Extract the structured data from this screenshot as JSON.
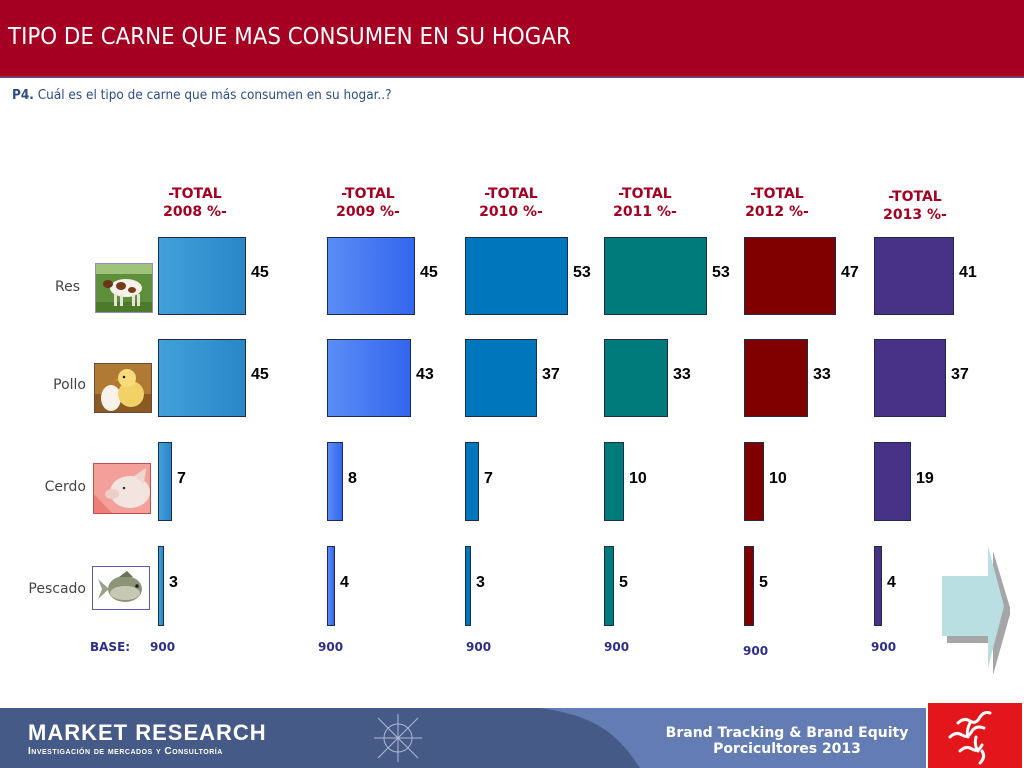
{
  "header": {
    "title": "TIPO DE CARNE QUE MAS CONSUMEN EN SU HOGAR"
  },
  "question": {
    "number": "P4.",
    "text": "Cuál es el tipo de carne que más consumen en su hogar..?"
  },
  "chart_data": {
    "type": "bar",
    "orientation": "horizontal",
    "title": "TIPO DE CARNE QUE MAS CONSUMEN EN SU HOGAR",
    "categories": [
      "Res",
      "Pollo",
      "Cerdo",
      "Pescado"
    ],
    "category_icons": [
      "cow-photo",
      "chick-photo",
      "pig-photo",
      "fish-photo"
    ],
    "series": [
      {
        "name": "-TOTAL 2008 %-",
        "line1": "-TOTAL",
        "line2": "2008 %-",
        "values": [
          45,
          45,
          7,
          3
        ],
        "base": "900",
        "color": "#2a87c8",
        "color_light": "#42a0d8"
      },
      {
        "name": "-TOTAL 2009 %-",
        "line1": "-TOTAL",
        "line2": "2009 %-",
        "values": [
          45,
          43,
          8,
          4
        ],
        "base": "900",
        "color": "#3366ee",
        "color_light": "#5b8cf6"
      },
      {
        "name": "-TOTAL 2010 %-",
        "line1": "-TOTAL",
        "line2": "2010 %-",
        "values": [
          53,
          37,
          7,
          3
        ],
        "base": "900",
        "color": "#0077bd",
        "color_light": "#0077bd"
      },
      {
        "name": "-TOTAL 2011 %-",
        "line1": "-TOTAL",
        "line2": "2011 %-",
        "values": [
          53,
          33,
          10,
          5
        ],
        "base": "900",
        "color": "#007b7b",
        "color_light": "#007b7b"
      },
      {
        "name": "-TOTAL 2012 %-",
        "line1": "-TOTAL",
        "line2": "2012 %-",
        "values": [
          47,
          33,
          10,
          5
        ],
        "base": "900",
        "color": "#800000",
        "color_light": "#800000"
      },
      {
        "name": "-TOTAL 2013 %-",
        "line1": "-TOTAL",
        "line2": "2013 %-",
        "values": [
          41,
          37,
          19,
          4
        ],
        "base": "900",
        "color": "#483287",
        "color_light": "#483287"
      }
    ],
    "base_label": "BASE:",
    "unit": "%",
    "xlabel": "",
    "ylabel": ""
  },
  "footer": {
    "company": "MARKET RESEARCH",
    "tagline": "Investigación de mercados y Consultoría",
    "brand_line1": "Brand Tracking & Brand Equity",
    "brand_line2": "Porcicultores 2013"
  },
  "navigation": {
    "next_icon": "arrow-right-icon"
  }
}
